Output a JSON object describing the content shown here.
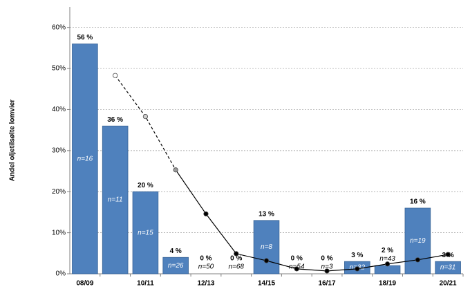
{
  "chart_data": {
    "type": "bar",
    "y_label": "Andel oljetilsølte lomvier",
    "categories": [
      "08/09",
      null,
      "10/11",
      null,
      "12/13",
      null,
      "14/15",
      null,
      "16/17",
      null,
      "18/19",
      null,
      "20/21"
    ],
    "values": [
      56,
      36,
      20,
      4,
      0,
      0,
      13,
      0,
      0,
      3,
      2,
      16,
      3
    ],
    "value_labels": [
      "56 %",
      "36 %",
      "20 %",
      "4 %",
      "0 %",
      "0 %",
      "13 %",
      "0 %",
      "0 %",
      "3 %",
      "2 %",
      "16 %",
      "3 %"
    ],
    "n_labels": [
      "n=16",
      "n=11",
      "n=15",
      "n=26",
      "n=50",
      "n=68",
      "n=8",
      "n=54",
      "n=3",
      "n=32",
      "n=43",
      "n=19",
      "n=31"
    ],
    "color": "#4f81bd",
    "line": {
      "values": [
        null,
        48.3,
        38.3,
        25.3,
        14.6,
        4.9,
        3.2,
        1.2,
        0.7,
        1.2,
        2.4,
        3.4,
        4.7
      ],
      "marker_colors": [
        null,
        "#ffffff",
        "#d0d0d0",
        "#999999",
        "#000000",
        "#000000",
        "#000000",
        "#000000",
        "#000000",
        "#000000",
        "#000000",
        "#000000",
        "#000000"
      ],
      "dashed_count": 3
    },
    "ylim": [
      0,
      65
    ],
    "yticks": [
      {
        "value": 0,
        "label": "0%"
      },
      {
        "value": 10,
        "label": "10%"
      },
      {
        "value": 20,
        "label": "20%"
      },
      {
        "value": 30,
        "label": "30%"
      },
      {
        "value": 40,
        "label": "40%"
      },
      {
        "value": 50,
        "label": "50%"
      },
      {
        "value": 60,
        "label": "60%"
      }
    ],
    "grid": true
  }
}
